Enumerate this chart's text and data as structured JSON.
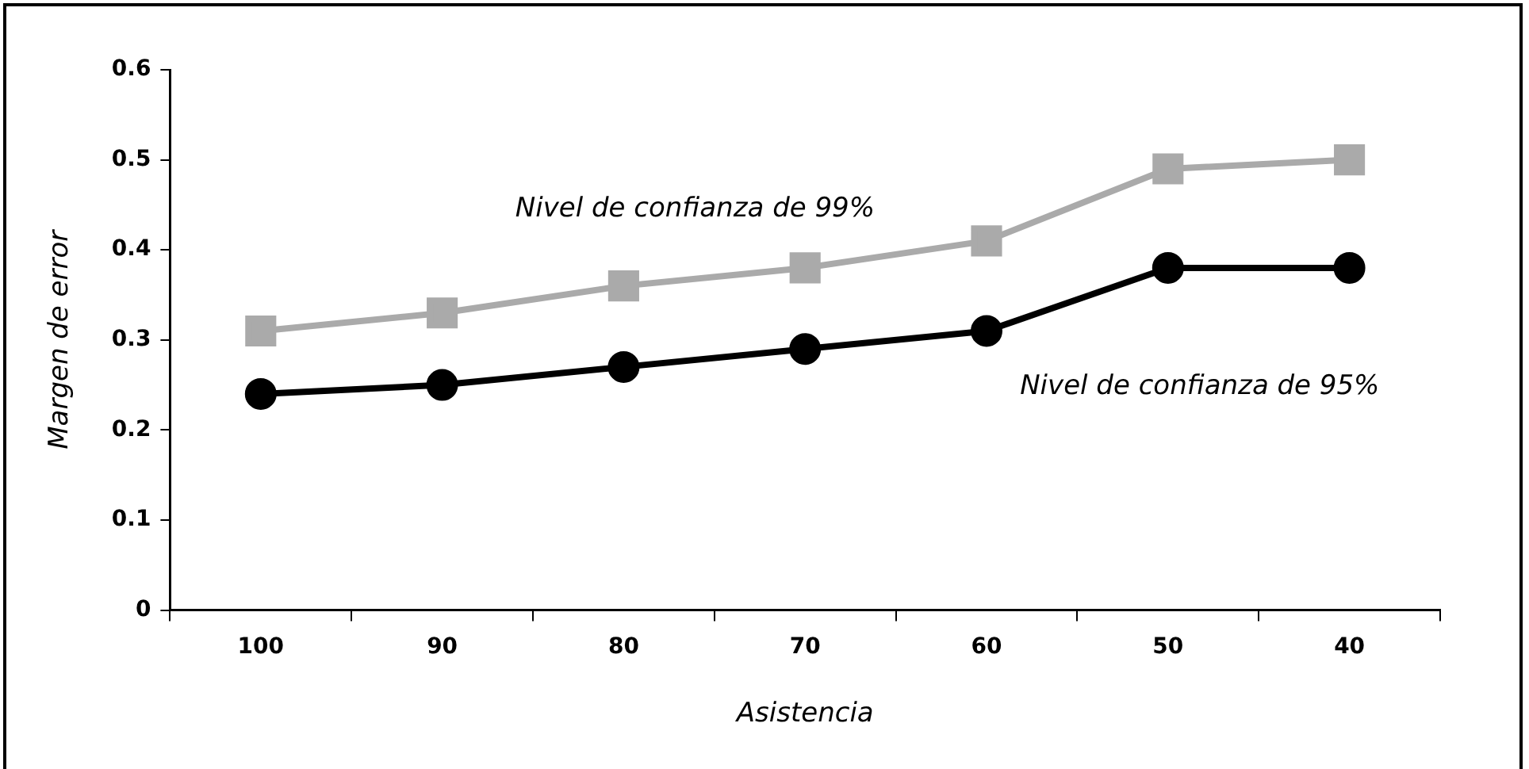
{
  "chart_data": {
    "type": "line",
    "xlabel": "Asistencia",
    "ylabel": "Margen de error",
    "categories": [
      "100",
      "90",
      "80",
      "70",
      "60",
      "50",
      "40"
    ],
    "series": [
      {
        "name": "Nivel de confianza de 99%",
        "color": "#aaaaaa",
        "marker": "square",
        "values": [
          0.31,
          0.33,
          0.36,
          0.38,
          0.41,
          0.49,
          0.5
        ]
      },
      {
        "name": "Nivel de confianza de 95%",
        "color": "#000000",
        "marker": "circle",
        "values": [
          0.24,
          0.25,
          0.27,
          0.29,
          0.31,
          0.38,
          0.38
        ]
      }
    ],
    "ylim": [
      0,
      0.6
    ],
    "yticks": [
      0,
      0.1,
      0.2,
      0.3,
      0.4,
      0.5,
      0.6
    ],
    "grid": false,
    "legend": false,
    "line_style": "solid"
  }
}
